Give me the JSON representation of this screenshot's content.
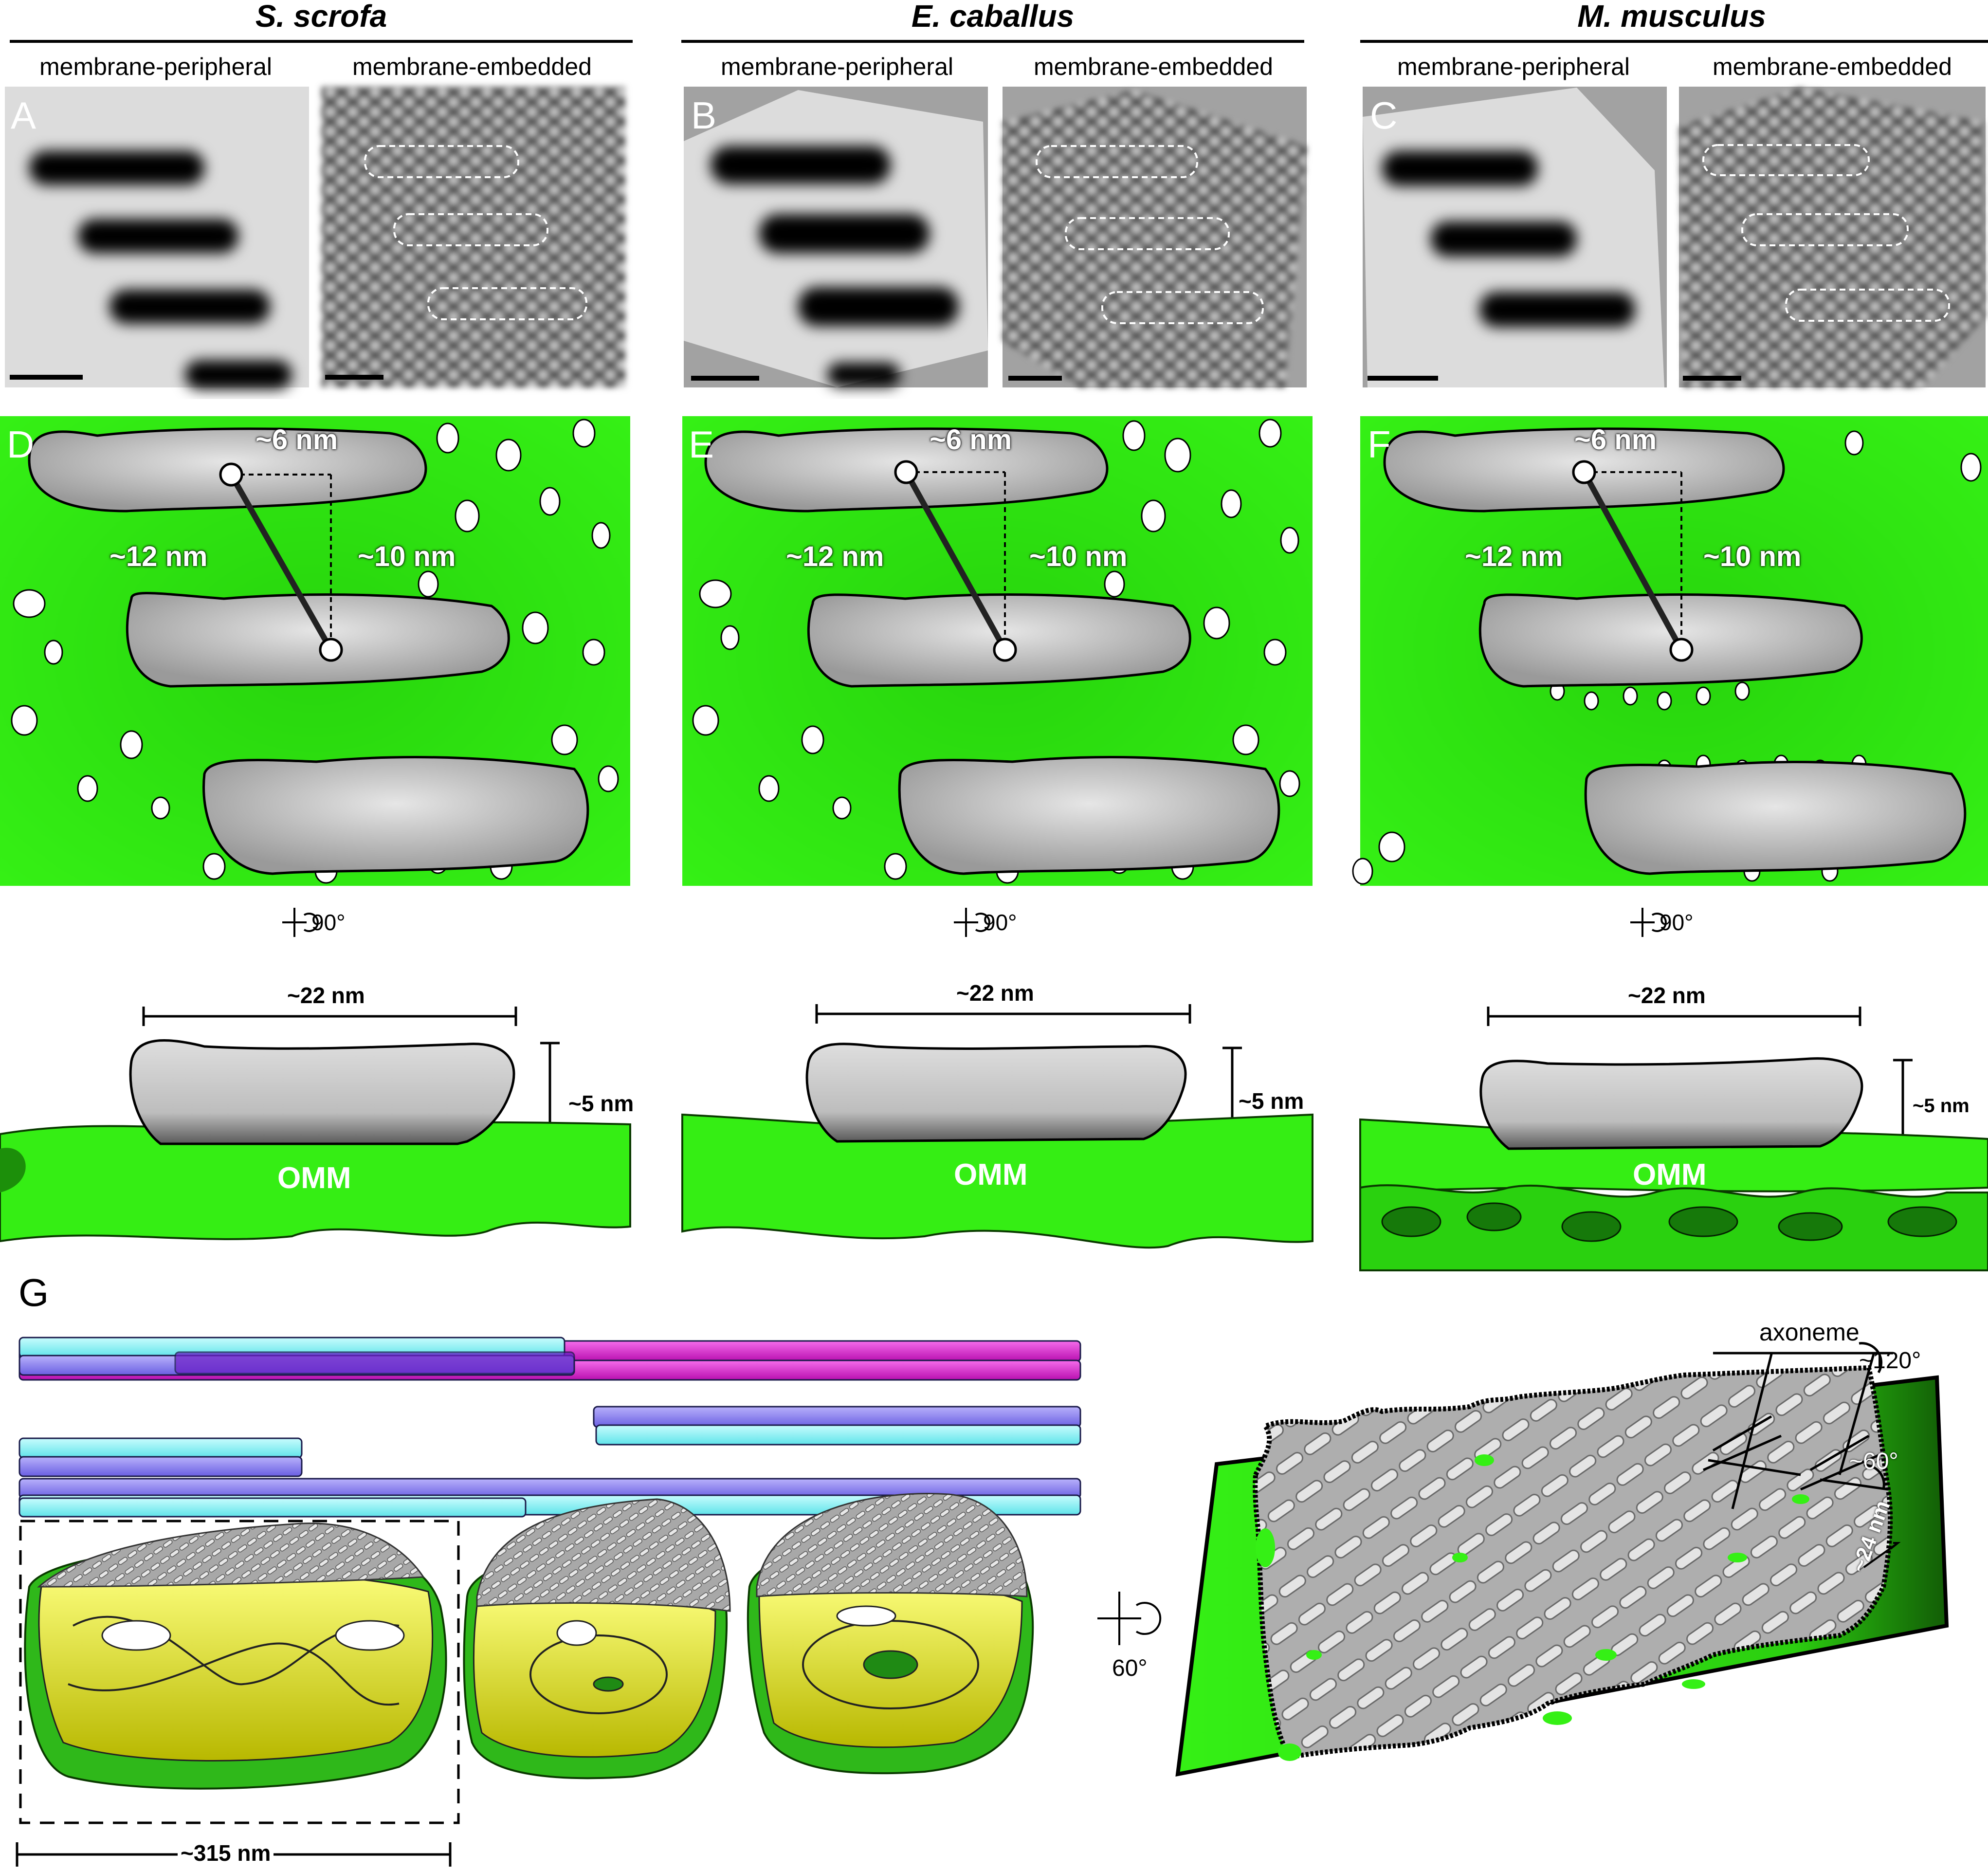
{
  "columns": [
    {
      "species": "S. scrofa",
      "left_label": "membrane-peripheral",
      "right_label": "membrane-embedded",
      "top_panel": "A",
      "mid_panel": "D"
    },
    {
      "species": "E. caballus",
      "left_label": "membrane-peripheral",
      "right_label": "membrane-embedded",
      "top_panel": "B",
      "mid_panel": "E"
    },
    {
      "species": "M. musculus",
      "left_label": "membrane-peripheral",
      "right_label": "membrane-embedded",
      "top_panel": "C",
      "mid_panel": "F"
    }
  ],
  "measurements": {
    "offset": "~6 nm",
    "diagonal": "~12 nm",
    "vertical": "~10 nm",
    "width": "~22 nm",
    "height": "~5 nm",
    "membrane": "OMM",
    "rotation": "90°"
  },
  "panel_g": {
    "letter": "G",
    "scale_label": "~315 nm",
    "rotation": "60°",
    "axoneme_label": "axoneme",
    "angle_large": "~120°",
    "angle_small": "~60°",
    "spacing": "~24 nm"
  },
  "colors": {
    "membrane_green": "#22e00a",
    "protein_gray": "#cfcfcf",
    "cyan": "#8ff3f6",
    "violet": "#8f86f0",
    "magenta": "#e22ad8",
    "yellow": "#eef20a"
  }
}
